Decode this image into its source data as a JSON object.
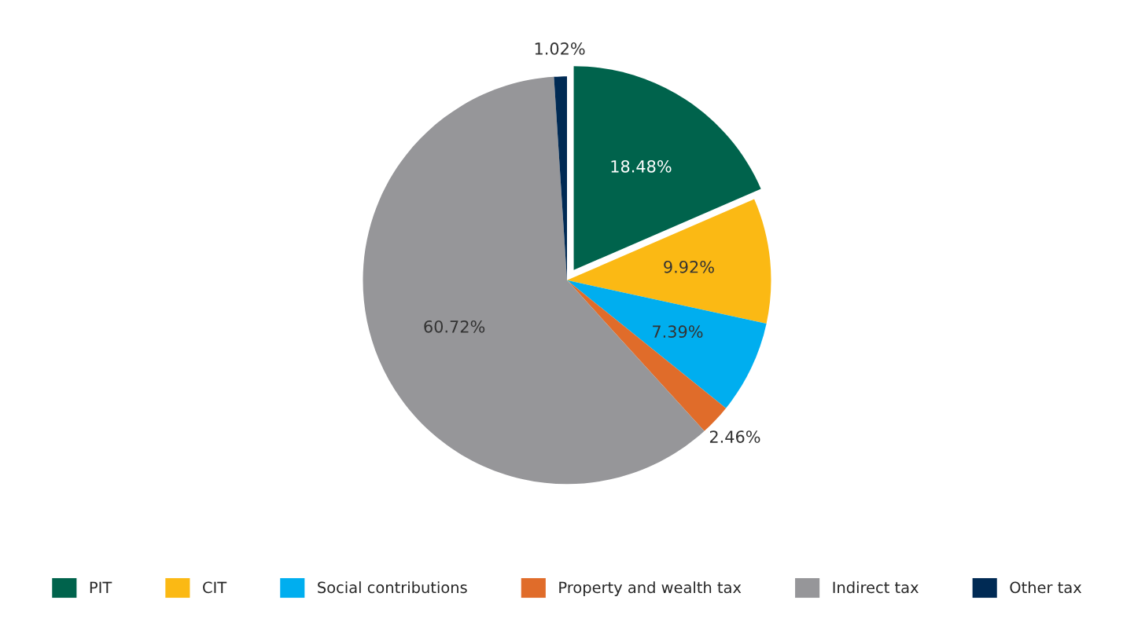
{
  "chart_data": {
    "type": "pie",
    "categories": [
      "PIT",
      "CIT",
      "Social contributions",
      "Property and wealth tax",
      "Indirect tax",
      "Other tax"
    ],
    "values": [
      18.48,
      9.92,
      7.39,
      2.46,
      60.72,
      1.02
    ],
    "colors": [
      "#00634c",
      "#fbb914",
      "#00aeef",
      "#e06c2a",
      "#969699",
      "#002a54"
    ],
    "value_labels": [
      "18.48%",
      "9.92%",
      "7.39%",
      "2.46%",
      "60.72%",
      "1.02%"
    ],
    "legend": "bottom"
  }
}
